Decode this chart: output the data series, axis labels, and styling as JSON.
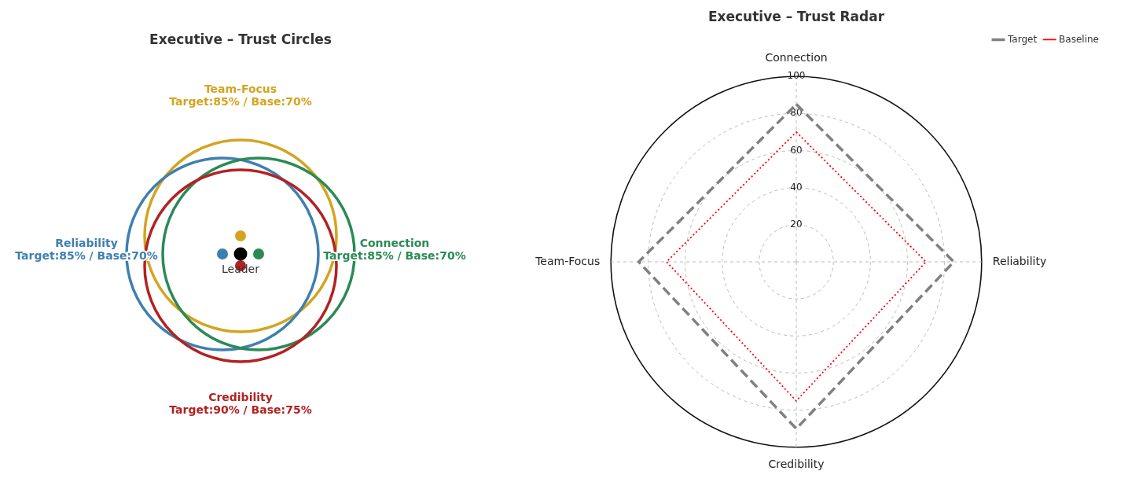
{
  "chart_data": [
    {
      "type": "other",
      "title": "Executive – Trust Circles",
      "categories": [
        "Team-Focus",
        "Reliability",
        "Connection",
        "Credibility"
      ],
      "colors": [
        "#d4a420",
        "#3f7fb0",
        "#2a8a55",
        "#b22222"
      ],
      "value_labels": [
        "Target:85% / Base:70%",
        "Target:85% / Base:70%",
        "Target:85% / Base:70%",
        "Target:90% / Base:75%"
      ],
      "annotations": [
        "Leader"
      ]
    },
    {
      "type": "radar",
      "title": "Executive – Trust Radar",
      "categories": [
        "Connection",
        "Reliability",
        "Credibility",
        "Team-Focus"
      ],
      "series": [
        {
          "name": "Target",
          "color": "#808080",
          "values": [
            85,
            85,
            90,
            85
          ],
          "line_style": "dashed"
        },
        {
          "name": "Baseline",
          "color": "#ff0000",
          "values": [
            70,
            70,
            75,
            70
          ],
          "line_style": "dotted"
        }
      ],
      "ylim": [
        0,
        100
      ],
      "yticks": [
        20,
        40,
        60,
        80,
        100
      ],
      "grid": true,
      "legend": "top right",
      "marker": "none"
    }
  ]
}
